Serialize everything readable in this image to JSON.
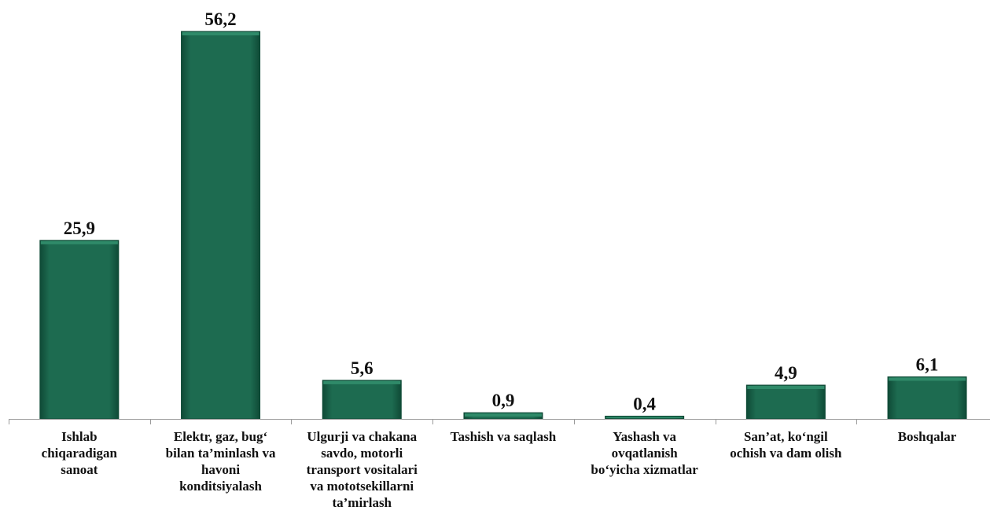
{
  "chart_data": {
    "type": "bar",
    "categories": [
      [
        "Ishlab",
        "chiqaradigan",
        "sanoat"
      ],
      [
        "Elektr, gaz, bug‘",
        "bilan ta’minlash va",
        "havoni",
        "konditsiyalash"
      ],
      [
        "Ulgurji va chakana",
        "savdo, motorli",
        "transport vositalari",
        "va mototsekillarni",
        "ta’mirlash"
      ],
      [
        "Tashish va saqlash"
      ],
      [
        "Yashash va",
        "ovqatlanish",
        "bo‘yicha xizmatlar"
      ],
      [
        "San’at, ko‘ngil",
        "ochish va dam olish"
      ],
      [
        "Boshqalar"
      ]
    ],
    "values": [
      25.9,
      56.2,
      5.6,
      0.9,
      0.4,
      4.9,
      6.1
    ],
    "value_labels": [
      "25,9",
      "56,2",
      "5,6",
      "0,9",
      "0,4",
      "4,9",
      "6,1"
    ],
    "title": "",
    "xlabel": "",
    "ylabel": "",
    "ylim": [
      0,
      56.2
    ],
    "grid": false,
    "legend": "none",
    "colors": {
      "bar_fill": "#1d6b50",
      "bar_edge": "#0f4a36",
      "bar_highlight": "#2f8a69",
      "axis": "#9a9a9a",
      "text": "#111111"
    }
  }
}
